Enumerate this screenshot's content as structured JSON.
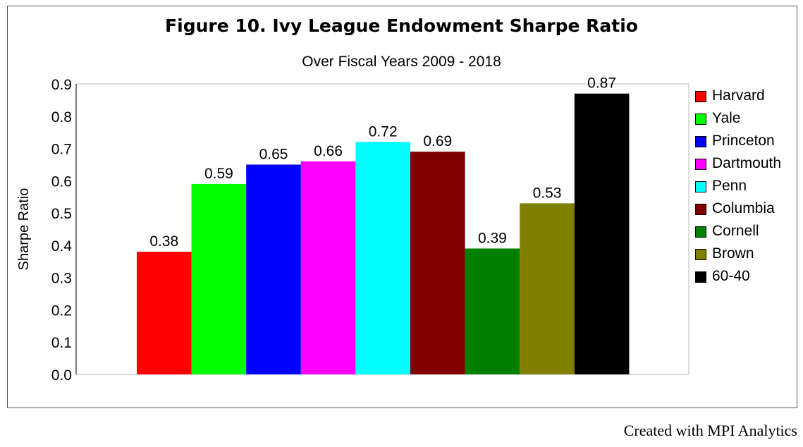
{
  "chart_data": {
    "type": "bar",
    "title": "Figure 10. Ivy League Endowment Sharpe Ratio",
    "subtitle": "Over Fiscal Years 2009 - 2018",
    "ylabel": "Sharpe Ratio",
    "xlabel": "",
    "ylim": [
      0,
      0.9
    ],
    "yticks": [
      "0.0",
      "0.1",
      "0.2",
      "0.3",
      "0.4",
      "0.5",
      "0.6",
      "0.7",
      "0.8",
      "0.9"
    ],
    "grid": false,
    "legend_position": "right",
    "series": [
      {
        "name": "Harvard",
        "value": 0.38,
        "label": "0.38",
        "color": "#ff0000"
      },
      {
        "name": "Yale",
        "value": 0.59,
        "label": "0.59",
        "color": "#00ff00"
      },
      {
        "name": "Princeton",
        "value": 0.65,
        "label": "0.65",
        "color": "#0000ff"
      },
      {
        "name": "Dartmouth",
        "value": 0.66,
        "label": "0.66",
        "color": "#ff00ff"
      },
      {
        "name": "Penn",
        "value": 0.72,
        "label": "0.72",
        "color": "#00ffff"
      },
      {
        "name": "Columbia",
        "value": 0.69,
        "label": "0.69",
        "color": "#800000"
      },
      {
        "name": "Cornell",
        "value": 0.39,
        "label": "0.39",
        "color": "#008000"
      },
      {
        "name": "Brown",
        "value": 0.53,
        "label": "0.53",
        "color": "#808000"
      },
      {
        "name": "60-40",
        "value": 0.87,
        "label": "0.87",
        "color": "#000000"
      }
    ]
  },
  "footer": {
    "credit": "Created with MPI Analytics"
  }
}
